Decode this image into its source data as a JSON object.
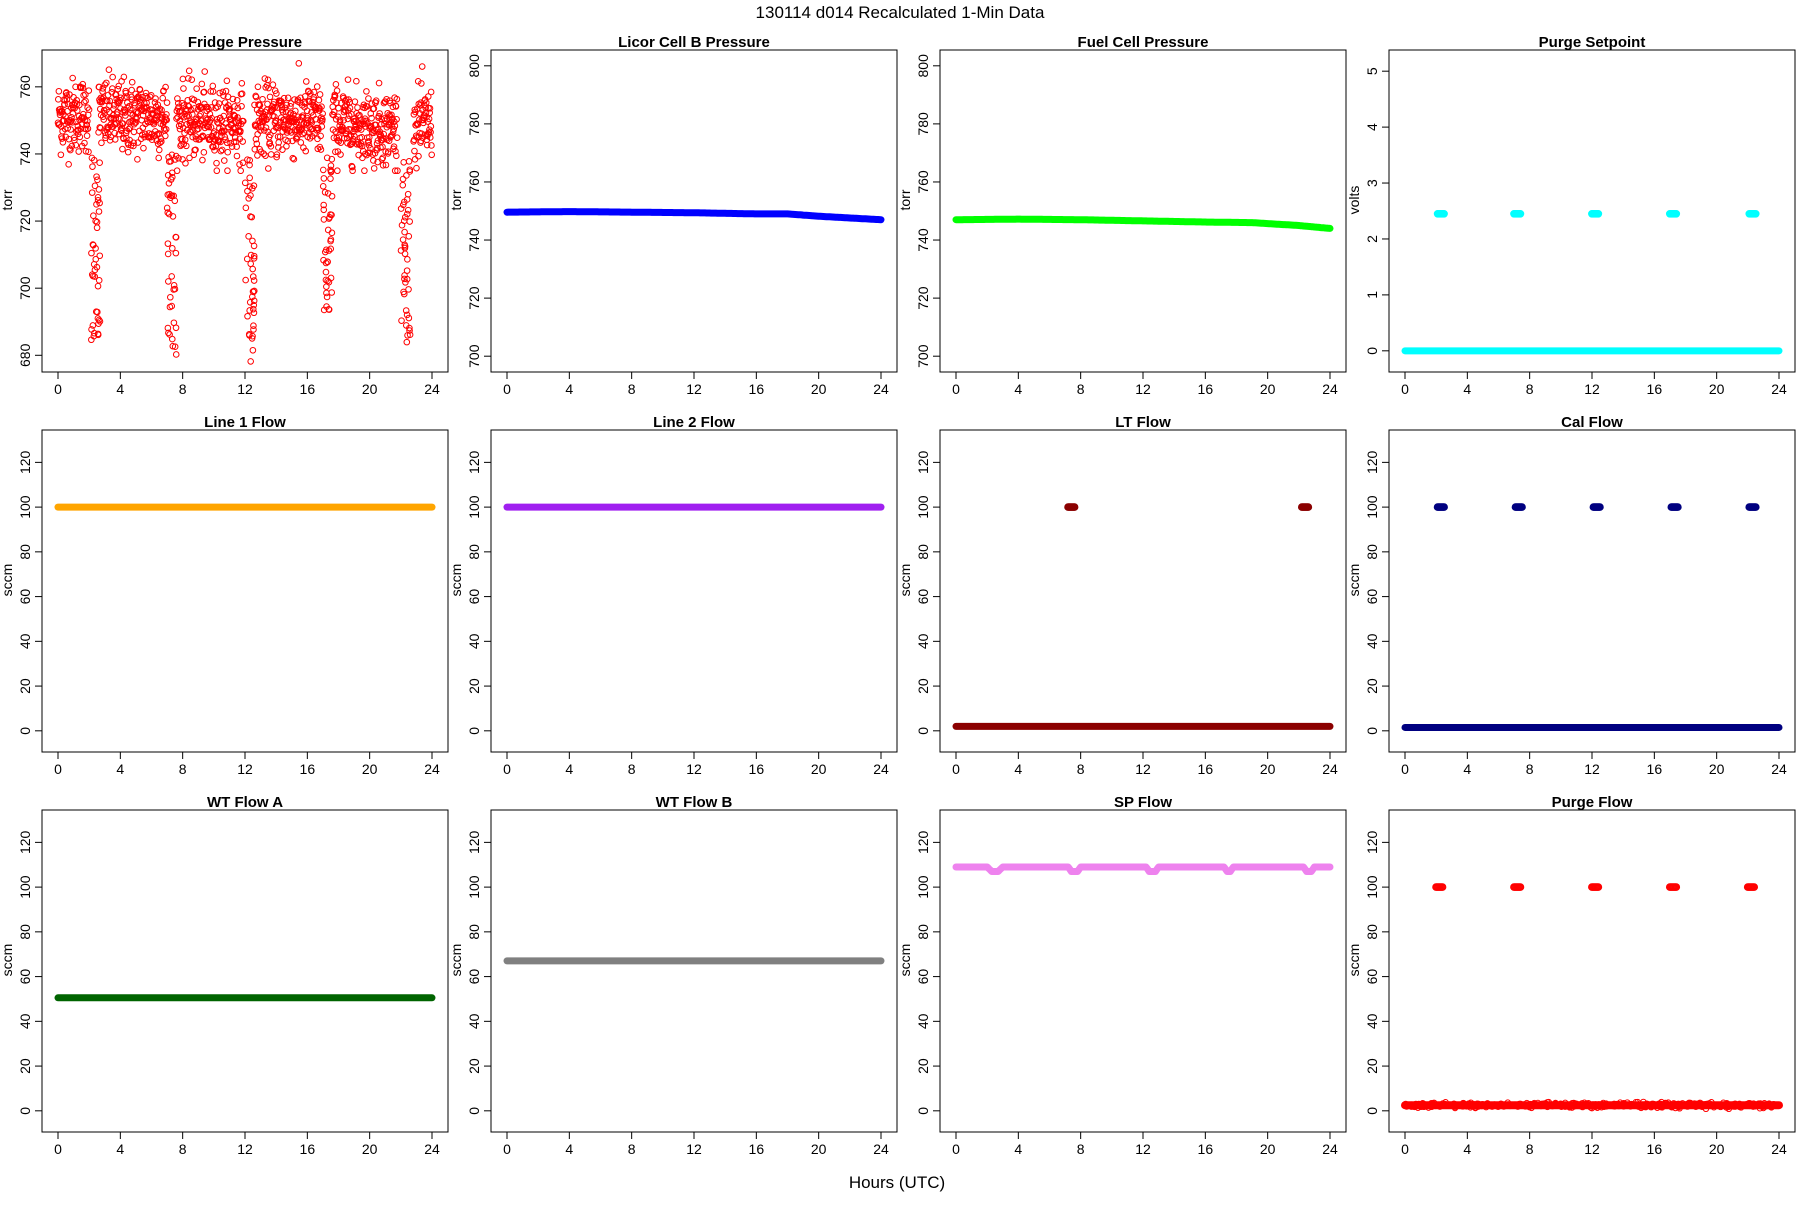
{
  "main_title": "130114   d014   Recalculated 1-Min Data",
  "x_axis_label": "Hours (UTC)",
  "chart_data": [
    {
      "type": "scatter",
      "title": "Fridge Pressure",
      "ylabel": "torr",
      "color": "#ff0000",
      "marker": "open",
      "xlim": [
        0,
        24
      ],
      "ylim": [
        678,
        768
      ],
      "xticks": [
        0,
        4,
        8,
        12,
        16,
        20,
        24
      ],
      "yticks": [
        680,
        700,
        720,
        740,
        760
      ],
      "baseline": [
        [
          0,
          751
        ],
        [
          2,
          752
        ],
        [
          4,
          751
        ],
        [
          6,
          751
        ],
        [
          8,
          750
        ],
        [
          10,
          749
        ],
        [
          12,
          749
        ],
        [
          14,
          750
        ],
        [
          16,
          750
        ],
        [
          18,
          749
        ],
        [
          20,
          748
        ],
        [
          22,
          748
        ],
        [
          24,
          749
        ]
      ],
      "spread": 18,
      "gaps": [
        [
          2.0,
          2.6
        ],
        [
          7.0,
          7.6
        ],
        [
          11.9,
          12.6
        ],
        [
          17.0,
          17.6
        ],
        [
          21.8,
          22.8
        ]
      ],
      "dips": [
        {
          "x": 2.4,
          "min": 684
        },
        {
          "x": 7.3,
          "min": 680
        },
        {
          "x": 12.3,
          "min": 678
        },
        {
          "x": 17.3,
          "min": 689
        },
        {
          "x": 22.3,
          "min": 683
        }
      ]
    },
    {
      "type": "line",
      "title": "Licor Cell B Pressure",
      "ylabel": "torr",
      "color": "#0000ff",
      "xlim": [
        0,
        24
      ],
      "ylim": [
        698,
        802
      ],
      "xticks": [
        0,
        4,
        8,
        12,
        16,
        20,
        24
      ],
      "yticks": [
        700,
        720,
        740,
        760,
        780,
        800
      ],
      "series_points": [
        [
          0,
          749.6
        ],
        [
          4,
          749.8
        ],
        [
          8,
          749.6
        ],
        [
          12,
          749.4
        ],
        [
          16,
          749.0
        ],
        [
          18,
          749.0
        ],
        [
          20,
          748.2
        ],
        [
          22,
          747.6
        ],
        [
          24,
          747.0
        ]
      ]
    },
    {
      "type": "line",
      "title": "Fuel Cell Pressure",
      "ylabel": "torr",
      "color": "#00ff00",
      "xlim": [
        0,
        24
      ],
      "ylim": [
        698,
        802
      ],
      "xticks": [
        0,
        4,
        8,
        12,
        16,
        20,
        24
      ],
      "yticks": [
        700,
        720,
        740,
        760,
        780,
        800
      ],
      "series_points": [
        [
          0,
          747.0
        ],
        [
          4,
          747.2
        ],
        [
          8,
          747.0
        ],
        [
          12,
          746.6
        ],
        [
          16,
          746.2
        ],
        [
          19,
          746.0
        ],
        [
          22,
          745.0
        ],
        [
          24,
          744.0
        ]
      ]
    },
    {
      "type": "scatter",
      "title": "Purge Setpoint",
      "ylabel": "volts",
      "color": "#00ffff",
      "marker": "filled",
      "xlim": [
        0,
        24
      ],
      "ylim": [
        -0.2,
        5.2
      ],
      "xticks": [
        0,
        4,
        8,
        12,
        16,
        20,
        24
      ],
      "yticks": [
        0,
        1,
        2,
        3,
        4,
        5
      ],
      "baseline_value": 0,
      "events": [
        {
          "x": 2.3,
          "y": 2.45
        },
        {
          "x": 7.2,
          "y": 2.45
        },
        {
          "x": 12.2,
          "y": 2.45
        },
        {
          "x": 17.2,
          "y": 2.45
        },
        {
          "x": 22.3,
          "y": 2.45
        }
      ]
    },
    {
      "type": "line",
      "title": "Line 1 Flow",
      "ylabel": "sccm",
      "color": "#ffa500",
      "xlim": [
        0,
        24
      ],
      "ylim": [
        -5,
        130
      ],
      "xticks": [
        0,
        4,
        8,
        12,
        16,
        20,
        24
      ],
      "yticks": [
        0,
        20,
        40,
        60,
        80,
        100,
        120
      ],
      "series_points": [
        [
          0,
          100
        ],
        [
          24,
          100
        ]
      ]
    },
    {
      "type": "line",
      "title": "Line 2 Flow",
      "ylabel": "sccm",
      "color": "#a020f0",
      "xlim": [
        0,
        24
      ],
      "ylim": [
        -5,
        130
      ],
      "xticks": [
        0,
        4,
        8,
        12,
        16,
        20,
        24
      ],
      "yticks": [
        0,
        20,
        40,
        60,
        80,
        100,
        120
      ],
      "series_points": [
        [
          0,
          100
        ],
        [
          24,
          100
        ]
      ]
    },
    {
      "type": "scatter",
      "title": "LT Flow",
      "ylabel": "sccm",
      "color": "#8b0000",
      "marker": "filled",
      "xlim": [
        0,
        24
      ],
      "ylim": [
        -5,
        130
      ],
      "xticks": [
        0,
        4,
        8,
        12,
        16,
        20,
        24
      ],
      "yticks": [
        0,
        20,
        40,
        60,
        80,
        100,
        120
      ],
      "baseline_value": 2,
      "events": [
        {
          "x": 7.4,
          "y": 100
        },
        {
          "x": 22.4,
          "y": 100
        }
      ]
    },
    {
      "type": "scatter",
      "title": "Cal Flow",
      "ylabel": "sccm",
      "color": "#000080",
      "marker": "filled",
      "xlim": [
        0,
        24
      ],
      "ylim": [
        -5,
        130
      ],
      "xticks": [
        0,
        4,
        8,
        12,
        16,
        20,
        24
      ],
      "yticks": [
        0,
        20,
        40,
        60,
        80,
        100,
        120
      ],
      "baseline_value": 1.5,
      "events": [
        {
          "x": 2.3,
          "y": 100
        },
        {
          "x": 7.3,
          "y": 100
        },
        {
          "x": 12.3,
          "y": 100
        },
        {
          "x": 17.3,
          "y": 100
        },
        {
          "x": 22.3,
          "y": 100
        }
      ]
    },
    {
      "type": "line",
      "title": "WT Flow A",
      "ylabel": "sccm",
      "color": "#006400",
      "xlim": [
        0,
        24
      ],
      "ylim": [
        -5,
        130
      ],
      "xticks": [
        0,
        4,
        8,
        12,
        16,
        20,
        24
      ],
      "yticks": [
        0,
        20,
        40,
        60,
        80,
        100,
        120
      ],
      "series_points": [
        [
          0,
          50.5
        ],
        [
          24,
          50.5
        ]
      ]
    },
    {
      "type": "line",
      "title": "WT Flow B",
      "ylabel": "sccm",
      "color": "#808080",
      "xlim": [
        0,
        24
      ],
      "ylim": [
        -5,
        130
      ],
      "xticks": [
        0,
        4,
        8,
        12,
        16,
        20,
        24
      ],
      "yticks": [
        0,
        20,
        40,
        60,
        80,
        100,
        120
      ],
      "series_points": [
        [
          0,
          67
        ],
        [
          12,
          67
        ],
        [
          24,
          67
        ]
      ]
    },
    {
      "type": "line",
      "title": "SP Flow",
      "ylabel": "sccm",
      "color": "#ee82ee",
      "xlim": [
        0,
        24
      ],
      "ylim": [
        -5,
        130
      ],
      "xticks": [
        0,
        4,
        8,
        12,
        16,
        20,
        24
      ],
      "yticks": [
        0,
        20,
        40,
        60,
        80,
        100,
        120
      ],
      "series_points": [
        [
          0,
          109
        ],
        [
          2.0,
          109
        ],
        [
          2.3,
          107
        ],
        [
          2.7,
          107
        ],
        [
          3.0,
          109
        ],
        [
          7.2,
          109
        ],
        [
          7.4,
          107
        ],
        [
          7.8,
          107
        ],
        [
          8.0,
          109
        ],
        [
          12.2,
          109
        ],
        [
          12.4,
          107
        ],
        [
          12.8,
          107
        ],
        [
          13.0,
          109
        ],
        [
          17.2,
          109
        ],
        [
          17.4,
          107
        ],
        [
          17.6,
          107
        ],
        [
          17.8,
          109
        ],
        [
          22.3,
          109
        ],
        [
          22.5,
          107
        ],
        [
          22.8,
          107
        ],
        [
          23.0,
          109
        ],
        [
          24,
          109
        ]
      ]
    },
    {
      "type": "scatter",
      "title": "Purge Flow",
      "ylabel": "sccm",
      "color": "#ff0000",
      "marker": "open",
      "xlim": [
        0,
        24
      ],
      "ylim": [
        -5,
        130
      ],
      "xticks": [
        0,
        4,
        8,
        12,
        16,
        20,
        24
      ],
      "yticks": [
        0,
        20,
        40,
        60,
        80,
        100,
        120
      ],
      "baseline_value": 2.5,
      "events": [
        {
          "x": 2.2,
          "y": 100
        },
        {
          "x": 7.2,
          "y": 100
        },
        {
          "x": 12.2,
          "y": 100
        },
        {
          "x": 17.2,
          "y": 100
        },
        {
          "x": 22.2,
          "y": 100
        }
      ]
    }
  ]
}
